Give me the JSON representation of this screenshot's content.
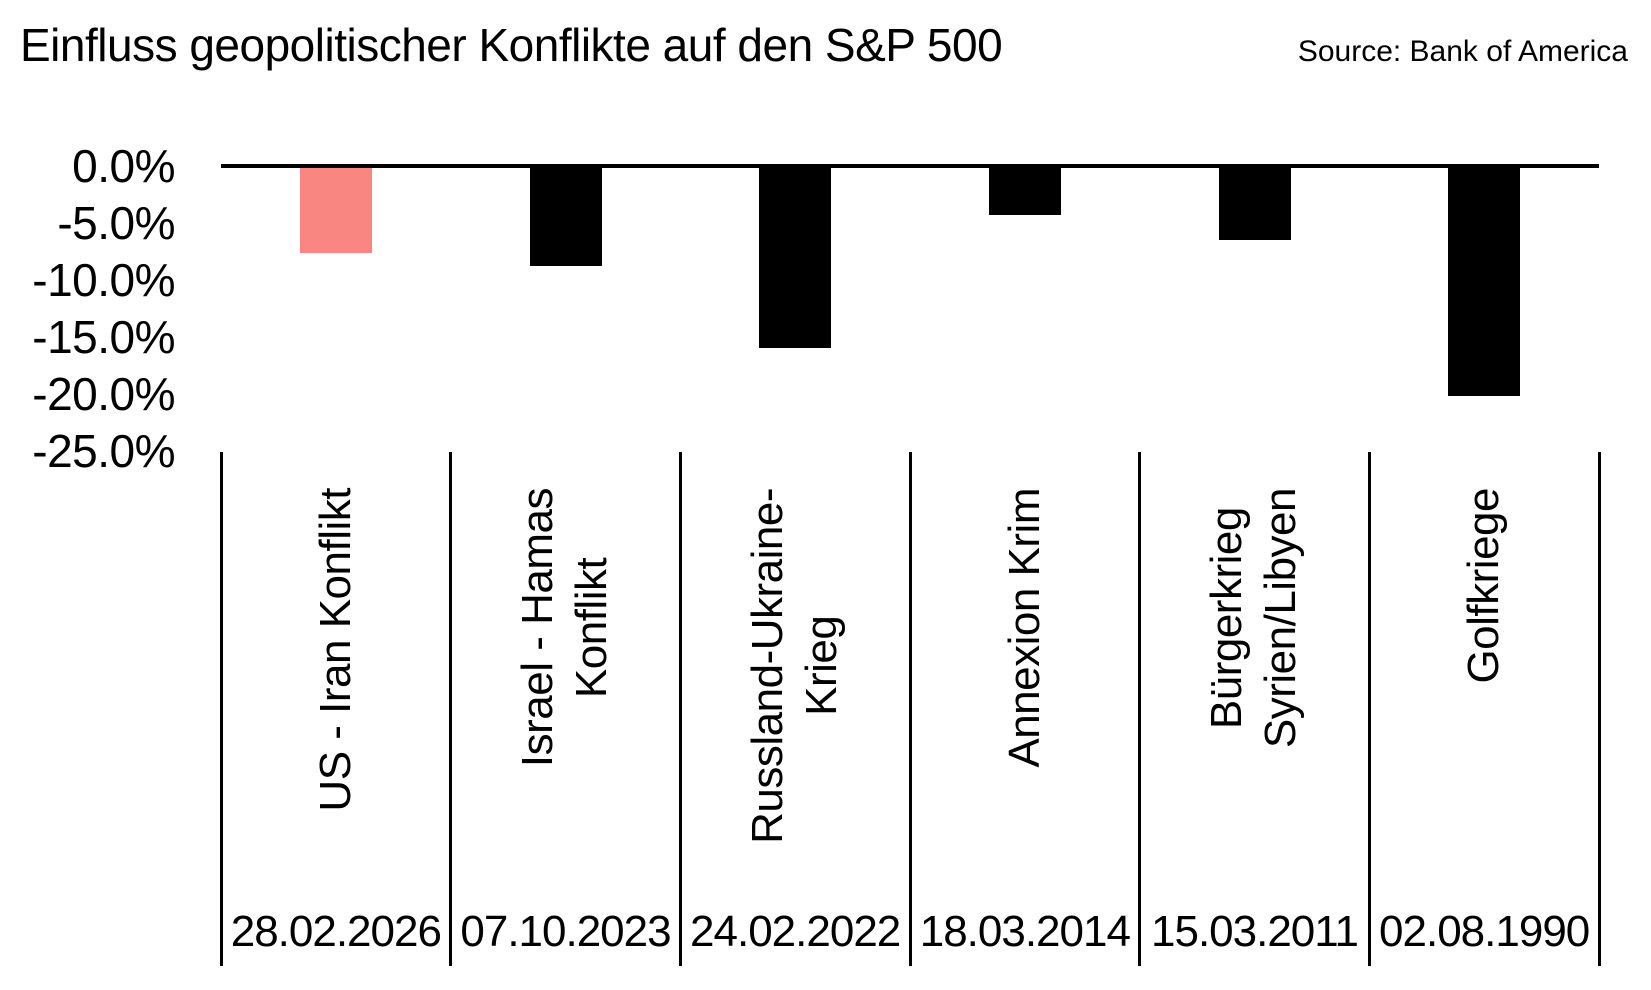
{
  "title": "Einfluss geopolitischer Konflikte auf den S&P 500",
  "source": "Source: Bank of America",
  "chart_data": {
    "type": "bar",
    "title": "Einfluss geopolitischer Konflikte auf den S&P 500",
    "source": "Source: Bank of America",
    "categories": [
      "US - Iran Konflikt",
      "Israel - Hamas\nKonflikt",
      "Russland-Ukraine-\nKrieg",
      "Annexion Krim",
      "Bürgerkrieg\nSyrien/Libyen",
      "Golfkriege"
    ],
    "dates": [
      "28.02.2026",
      "07.10.2023",
      "24.02.2022",
      "18.03.2014",
      "15.03.2011",
      "02.08.1990"
    ],
    "values": [
      -7.6,
      -8.8,
      -16.0,
      -4.3,
      -6.5,
      -20.2
    ],
    "unit": "%",
    "ylim": [
      -25,
      0
    ],
    "ytick_labels": [
      "0.0%",
      "-5.0%",
      "-10.0%",
      "-15.0%",
      "-20.0%",
      "-25.0%"
    ],
    "bar_colors": [
      "#F98680",
      "#000000",
      "#000000",
      "#000000",
      "#000000",
      "#000000"
    ],
    "highlight_color": "#F98680",
    "default_bar_color": "#000000",
    "axis_color": "#000000",
    "grid": false,
    "legend": false
  }
}
